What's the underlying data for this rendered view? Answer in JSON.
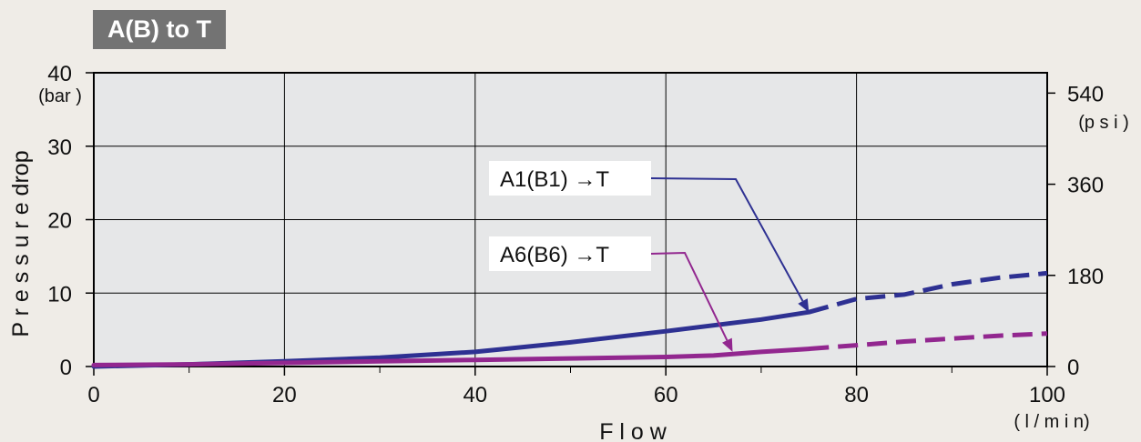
{
  "chart_data": {
    "type": "line",
    "title": "A(B) to T",
    "xlabel": "F l o w",
    "x_unit": "( l / m i n)",
    "ylabel": "P r e s s u r e  drop",
    "y_unit": "(bar )",
    "y2_unit": "(p s i )",
    "xlim": [
      0,
      100
    ],
    "ylim": [
      0,
      40
    ],
    "x_ticks": [
      0,
      20,
      40,
      60,
      80,
      100
    ],
    "y_ticks": [
      0,
      10,
      20,
      30,
      40
    ],
    "y2_ticks": [
      0,
      180,
      360,
      540
    ],
    "grid": true,
    "series": [
      {
        "name": "A1(B1) →T",
        "color": "#2e3192",
        "points": [
          [
            0,
            0
          ],
          [
            10,
            0.3
          ],
          [
            20,
            0.7
          ],
          [
            30,
            1.2
          ],
          [
            40,
            2.0
          ],
          [
            50,
            3.3
          ],
          [
            60,
            4.8
          ],
          [
            70,
            6.4
          ],
          [
            75,
            7.4
          ]
        ],
        "dashed_points": [
          [
            75,
            7.4
          ],
          [
            80,
            9.2
          ],
          [
            85,
            9.8
          ],
          [
            90,
            11.2
          ],
          [
            95,
            12.1
          ],
          [
            100,
            12.7
          ]
        ]
      },
      {
        "name": "A6(B6) →T",
        "color": "#92278f",
        "points": [
          [
            0,
            0.2
          ],
          [
            10,
            0.3
          ],
          [
            20,
            0.5
          ],
          [
            30,
            0.7
          ],
          [
            40,
            0.9
          ],
          [
            50,
            1.1
          ],
          [
            60,
            1.3
          ],
          [
            65,
            1.5
          ],
          [
            70,
            2.0
          ],
          [
            75,
            2.4
          ]
        ],
        "dashed_points": [
          [
            75,
            2.4
          ],
          [
            80,
            2.9
          ],
          [
            85,
            3.4
          ],
          [
            90,
            3.8
          ],
          [
            95,
            4.2
          ],
          [
            100,
            4.5
          ]
        ]
      }
    ],
    "annotations": [
      {
        "text": "A1(B1) →T",
        "series": 0,
        "target": [
          75,
          7.4
        ],
        "color": "#2e3192"
      },
      {
        "text": "A6(B6) →T",
        "series": 1,
        "target": [
          67,
          2.0
        ],
        "color": "#92278f"
      }
    ]
  }
}
